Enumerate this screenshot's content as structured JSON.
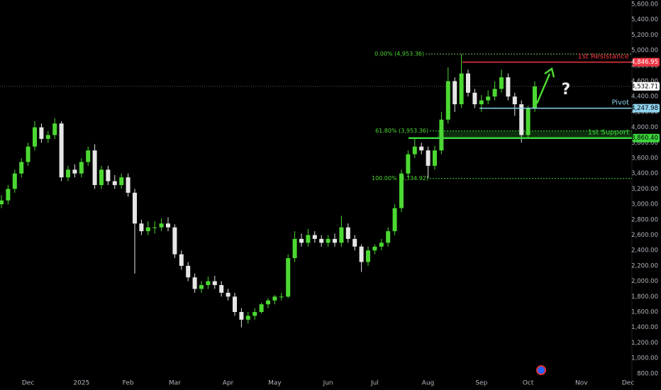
{
  "chart_data": {
    "type": "candlestick",
    "categories": [
      null,
      null,
      null,
      null,
      "Dec",
      null,
      null,
      null,
      null,
      null,
      null,
      null,
      "2025",
      null,
      null,
      null,
      null,
      null,
      null,
      "Feb",
      null,
      null,
      null,
      null,
      null,
      null,
      "Mar",
      null,
      null,
      null,
      null,
      null,
      null,
      null,
      "Apr",
      null,
      null,
      null,
      null,
      null,
      null,
      "May",
      null,
      null,
      null,
      null,
      null,
      null,
      null,
      "Jun",
      null,
      null,
      null,
      null,
      null,
      null,
      "Jul",
      null,
      null,
      null,
      null,
      null,
      null,
      null,
      "Aug",
      null,
      null,
      null,
      null,
      null,
      null,
      null,
      "Sep",
      null,
      null,
      null,
      null,
      null,
      null,
      "Oct",
      null,
      null,
      null,
      null,
      null,
      null,
      null,
      "Nov",
      null,
      null,
      null,
      null,
      null,
      null,
      "Dec",
      null
    ],
    "open": [
      3000,
      3050,
      3200,
      3400,
      3550,
      3750,
      4000,
      3850,
      3900,
      4050,
      3350,
      3450,
      3400,
      3550,
      3700,
      3250,
      3450,
      3300,
      3250,
      3350,
      3150,
      2750,
      2650,
      2700,
      2700,
      2750,
      2700,
      2350,
      2200,
      2050,
      1900,
      1950,
      2000,
      1950,
      1850,
      1800,
      1600,
      1500,
      1550,
      1600,
      1700,
      1750,
      1800,
      1800,
      2300,
      2550,
      2500,
      2600,
      2550,
      2500,
      2550,
      2500,
      2700,
      2550,
      2450,
      2250,
      2400,
      2450,
      2500,
      2650,
      2950,
      3400,
      3650,
      3750,
      3700,
      3500,
      3700,
      4100,
      4600,
      4300,
      4700,
      4450,
      4300,
      4350,
      4400,
      4500,
      4650,
      4400,
      4300,
      3900,
      4250,
      null,
      null,
      null,
      null,
      null,
      null,
      null,
      null,
      null,
      null,
      null,
      null,
      null,
      null,
      null
    ],
    "high": [
      3120,
      3250,
      3450,
      3600,
      3800,
      4080,
      4050,
      3950,
      4120,
      4080,
      3500,
      3520,
      3600,
      3750,
      3780,
      3500,
      3500,
      3380,
      3400,
      3400,
      3200,
      2800,
      2780,
      2780,
      2820,
      2830,
      2740,
      2400,
      2250,
      2100,
      2000,
      2060,
      2070,
      2000,
      1900,
      1850,
      1650,
      1600,
      1650,
      1720,
      1780,
      1820,
      1850,
      2350,
      2650,
      2620,
      2680,
      2650,
      2600,
      2600,
      2620,
      2850,
      2750,
      2600,
      2480,
      2450,
      2480,
      2550,
      2700,
      3000,
      3450,
      3700,
      3860,
      3800,
      3750,
      3760,
      4200,
      4780,
      4650,
      4953.36,
      4750,
      4500,
      4420,
      4480,
      4600,
      4750,
      4700,
      4450,
      4350,
      4280,
      4600,
      null,
      null,
      null,
      null,
      null,
      null,
      null,
      null,
      null,
      null,
      null,
      null,
      null,
      null,
      null
    ],
    "low": [
      2950,
      3000,
      3150,
      3350,
      3500,
      3700,
      3800,
      3800,
      3850,
      3300,
      3300,
      3350,
      3350,
      3500,
      3200,
      3200,
      3250,
      3200,
      3200,
      3100,
      2100,
      2600,
      2600,
      2620,
      2650,
      2650,
      2300,
      2150,
      2000,
      1850,
      1850,
      1900,
      1900,
      1800,
      1750,
      1550,
      1400,
      1450,
      1500,
      1580,
      1650,
      1700,
      1750,
      1780,
      2250,
      2450,
      2450,
      2500,
      2450,
      2450,
      2450,
      2450,
      2500,
      2400,
      2120,
      2200,
      2350,
      2400,
      2450,
      2600,
      2900,
      3350,
      3600,
      3650,
      3334.92,
      3450,
      3650,
      4050,
      4200,
      4250,
      4400,
      4250,
      4200,
      4300,
      4350,
      4450,
      4350,
      4150,
      3800,
      3850,
      4200,
      null,
      null,
      null,
      null,
      null,
      null,
      null,
      null,
      null,
      null,
      null,
      null,
      null,
      null,
      null
    ],
    "close": [
      3050,
      3200,
      3400,
      3550,
      3750,
      4000,
      3850,
      3900,
      4050,
      3350,
      3450,
      3400,
      3550,
      3700,
      3250,
      3450,
      3300,
      3250,
      3350,
      3150,
      2750,
      2650,
      2700,
      2700,
      2750,
      2700,
      2350,
      2200,
      2050,
      1900,
      1950,
      2000,
      1950,
      1850,
      1800,
      1600,
      1500,
      1550,
      1600,
      1700,
      1750,
      1800,
      1800,
      2300,
      2550,
      2500,
      2600,
      2550,
      2500,
      2550,
      2500,
      2700,
      2550,
      2450,
      2250,
      2400,
      2450,
      2500,
      2650,
      2950,
      3400,
      3650,
      3750,
      3700,
      3500,
      3700,
      4100,
      4600,
      4300,
      4700,
      4450,
      4300,
      4350,
      4400,
      4500,
      4650,
      4400,
      4300,
      3900,
      4250,
      4532.71,
      null,
      null,
      null,
      null,
      null,
      null,
      null,
      null,
      null,
      null,
      null,
      null,
      null,
      null,
      null
    ],
    "up_color": "#4cd832",
    "down_color": "#e6e6e6",
    "ylim": [
      789,
      5655
    ],
    "yticks": [
      {
        "value": 800,
        "label": "800.00"
      },
      {
        "value": 1000,
        "label": "1,000.00"
      },
      {
        "value": 1200,
        "label": "1,200.00"
      },
      {
        "value": 1400,
        "label": "1,400.00"
      },
      {
        "value": 1600,
        "label": "1,600.00"
      },
      {
        "value": 1800,
        "label": "1,800.00"
      },
      {
        "value": 2000,
        "label": "2,000.00"
      },
      {
        "value": 2200,
        "label": "2,200.00"
      },
      {
        "value": 2400,
        "label": "2,400.00"
      },
      {
        "value": 2600,
        "label": "2,600.00"
      },
      {
        "value": 2800,
        "label": "2,800.00"
      },
      {
        "value": 3000,
        "label": "3,000.00"
      },
      {
        "value": 3200,
        "label": "3,200.00"
      },
      {
        "value": 3400,
        "label": "3,400.00"
      },
      {
        "value": 3600,
        "label": "3,600.00"
      },
      {
        "value": 3800,
        "label": "3,800.00"
      },
      {
        "value": 4000,
        "label": "4,000.00"
      },
      {
        "value": 4200,
        "label": "4,200.00"
      },
      {
        "value": 4400,
        "label": "4,400.00"
      },
      {
        "value": 4600,
        "label": "4,600.00"
      },
      {
        "value": 4800,
        "label": "4,800.00"
      },
      {
        "value": 5000,
        "label": "5,000.00"
      },
      {
        "value": 5200,
        "label": "5,200.00"
      },
      {
        "value": 5400,
        "label": "5,400.00"
      },
      {
        "value": 5600,
        "label": "5,600.00"
      }
    ],
    "last_price": {
      "value": 4532.71,
      "label": "4,532.71"
    },
    "levels": [
      {
        "name": "1st Resistance",
        "value": 4846.95,
        "label": "4,846.95",
        "color": "#f23645"
      },
      {
        "name": "Pivot",
        "value": 4247.98,
        "label": "4,247.98",
        "color": "#8fd3ee"
      },
      {
        "name": "1st Support",
        "value": 3860.4,
        "label": "3,860.40",
        "color": "#3bd43b"
      }
    ],
    "fibonacci": [
      {
        "text": "0.00% (4,953.36)",
        "value": 4953.36
      },
      {
        "text": "61.80% (3,953.36)",
        "value": 3953.36
      },
      {
        "text": "100.00% (3,334.92)",
        "value": 3334.92
      }
    ]
  }
}
